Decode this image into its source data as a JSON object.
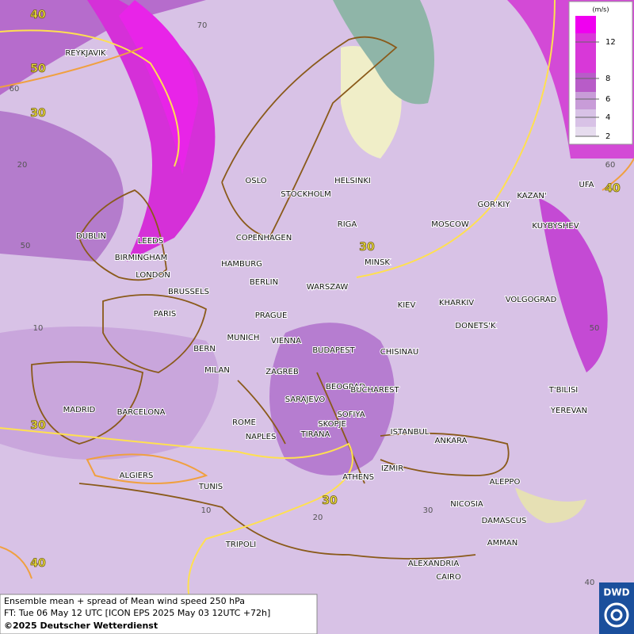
{
  "map": {
    "legend": {
      "unit": "(m/s)",
      "ticks": [
        12,
        8,
        6,
        4,
        2
      ]
    },
    "cities": [
      "REYKJAVIK",
      "DUBLIN",
      "LEEDS",
      "BIRMINGHAM",
      "LONDON",
      "OSLO",
      "STOCKHOLM",
      "HELSINKI",
      "RIGA",
      "COPENHAGEN",
      "HAMBURG",
      "BERLIN",
      "BRUSSELS",
      "PARIS",
      "WARSZAW",
      "MINSK",
      "MOSCOW",
      "GOR'KIY",
      "KAZAN'",
      "UFA",
      "KUYBYSHEV",
      "KIEV",
      "KHARKIV",
      "VOLGOGRAD",
      "DONETS'K",
      "PRAGUE",
      "MUNICH",
      "VIENNA",
      "BUDAPEST",
      "BERN",
      "MILAN",
      "CHISINAU",
      "ZAGREB",
      "BEOGRAD",
      "SARAJEVO",
      "BUCHAREST",
      "T'BILISI",
      "YEREVAN",
      "MADRID",
      "BARCELONA",
      "ROME",
      "SOFIYA",
      "SKOPJE",
      "TIRANA",
      "NAPLES",
      "ISTANBUL",
      "ANKARA",
      "ALGIERS",
      "TUNIS",
      "IZMIR",
      "ATHENS",
      "ALEPPO",
      "NICOSIA",
      "DAMASCUS",
      "AMMAN",
      "TRIPOLI",
      "ALEXANDRIA",
      "CAIRO"
    ],
    "contour_labels": [
      40,
      50,
      30,
      30,
      40,
      30,
      30,
      40
    ],
    "grid_labels": [
      70,
      60,
      20,
      50,
      10,
      60,
      50,
      40,
      20,
      30,
      10
    ],
    "footer": {
      "line1": "Ensemble mean + spread of Mean wind speed 250 hPa",
      "line2": "FT: Tue 06 May 12 UTC [ICON EPS 2025 May 03 12UTC +72h]",
      "copyright": "©2025 Deutscher Wetterdienst"
    },
    "logo": "DWD"
  }
}
